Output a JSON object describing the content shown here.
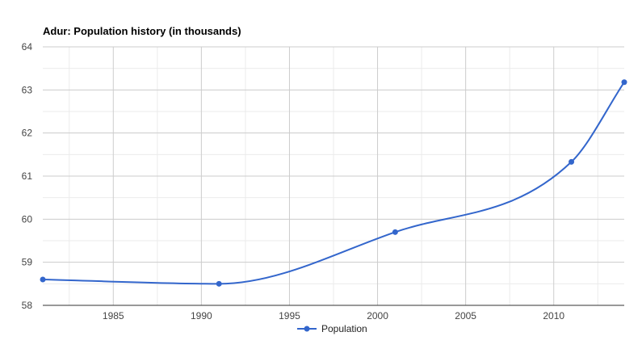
{
  "chart_data": {
    "type": "line",
    "title": "Adur: Population history (in thousands)",
    "xlabel": "",
    "ylabel": "",
    "xlim": [
      1981,
      2014
    ],
    "ylim": [
      58,
      64
    ],
    "x_ticks": [
      "1985",
      "1990",
      "1995",
      "2000",
      "2005",
      "2010"
    ],
    "y_ticks": [
      "58",
      "59",
      "60",
      "61",
      "62",
      "63",
      "64"
    ],
    "grid": true,
    "legend_position": "bottom",
    "colors": {
      "line": "#3366cc",
      "grid_major": "#cccccc",
      "grid_minor": "#ebebeb"
    },
    "series": [
      {
        "name": "Population",
        "x": [
          1981,
          1991,
          2001,
          2011,
          2014
        ],
        "values": [
          58.6,
          58.5,
          59.7,
          61.33,
          63.18
        ]
      }
    ]
  }
}
